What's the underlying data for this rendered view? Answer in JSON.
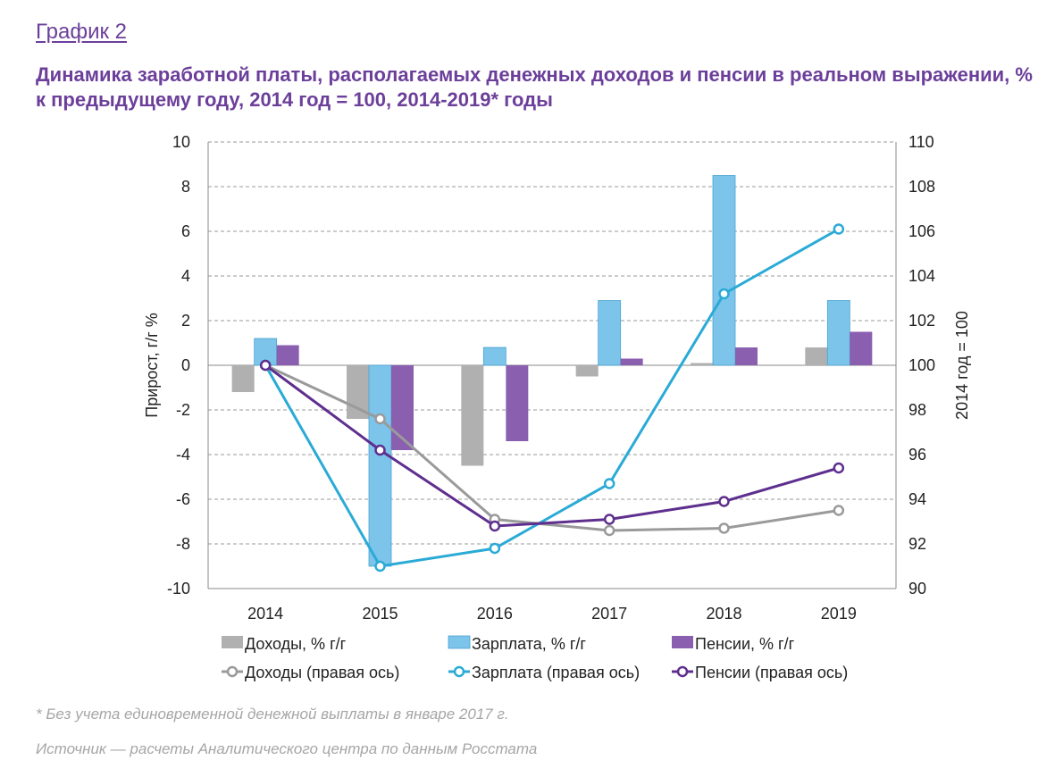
{
  "label": "График 2",
  "title": "Динамика заработной платы, располагаемых денежных доходов и пенсии в реальном выражении, % к предыдущему году, 2014 год = 100, 2014-2019* годы",
  "footnote": "* Без учета единовременной денежной выплаты в январе 2017 г.",
  "source": "Источник — расчеты Аналитического центра по данным Росстата",
  "chart_data": {
    "type": "bar",
    "categories": [
      "2014",
      "2015",
      "2016",
      "2017",
      "2018",
      "2019"
    ],
    "ylabel": "Прирост, г/г %",
    "y2label": "2014 год = 100",
    "ylim": [
      -10,
      10
    ],
    "y2lim": [
      90,
      110
    ],
    "yticks": [
      "10",
      "8",
      "6",
      "4",
      "2",
      "0",
      "-2",
      "-4",
      "-6",
      "-8",
      "-10"
    ],
    "y2ticks": [
      "110",
      "108",
      "106",
      "104",
      "102",
      "100",
      "98",
      "96",
      "94",
      "92",
      "90"
    ],
    "grid": true,
    "legend_position": "bottom",
    "series": [
      {
        "name": "Доходы, % г/г",
        "type": "bar",
        "axis": "left",
        "color": "#b0b0b0",
        "values": [
          -1.2,
          -2.4,
          -4.5,
          -0.5,
          0.1,
          0.8
        ]
      },
      {
        "name": "Зарплата, % г/г",
        "type": "bar",
        "axis": "left",
        "color": "#7cc4ea",
        "values": [
          1.2,
          -9.0,
          0.8,
          2.9,
          8.5,
          2.9
        ]
      },
      {
        "name": "Пенсии, % г/г",
        "type": "bar",
        "axis": "left",
        "color": "#8a5fb0",
        "values": [
          0.9,
          -3.8,
          -3.4,
          0.3,
          0.8,
          1.5
        ]
      },
      {
        "name": "Доходы (правая ось)",
        "type": "line",
        "axis": "right",
        "color": "#9a9a9a",
        "values": [
          100.0,
          97.6,
          93.1,
          92.6,
          92.7,
          93.5
        ]
      },
      {
        "name": "Зарплата (правая ось)",
        "type": "line",
        "axis": "right",
        "color": "#2aaad6",
        "values": [
          100.0,
          91.0,
          91.8,
          94.7,
          103.2,
          106.1
        ]
      },
      {
        "name": "Пенсии (правая ось)",
        "type": "line",
        "axis": "right",
        "color": "#5e2f8e",
        "values": [
          100.0,
          96.2,
          92.8,
          93.1,
          93.9,
          95.4
        ]
      }
    ]
  }
}
